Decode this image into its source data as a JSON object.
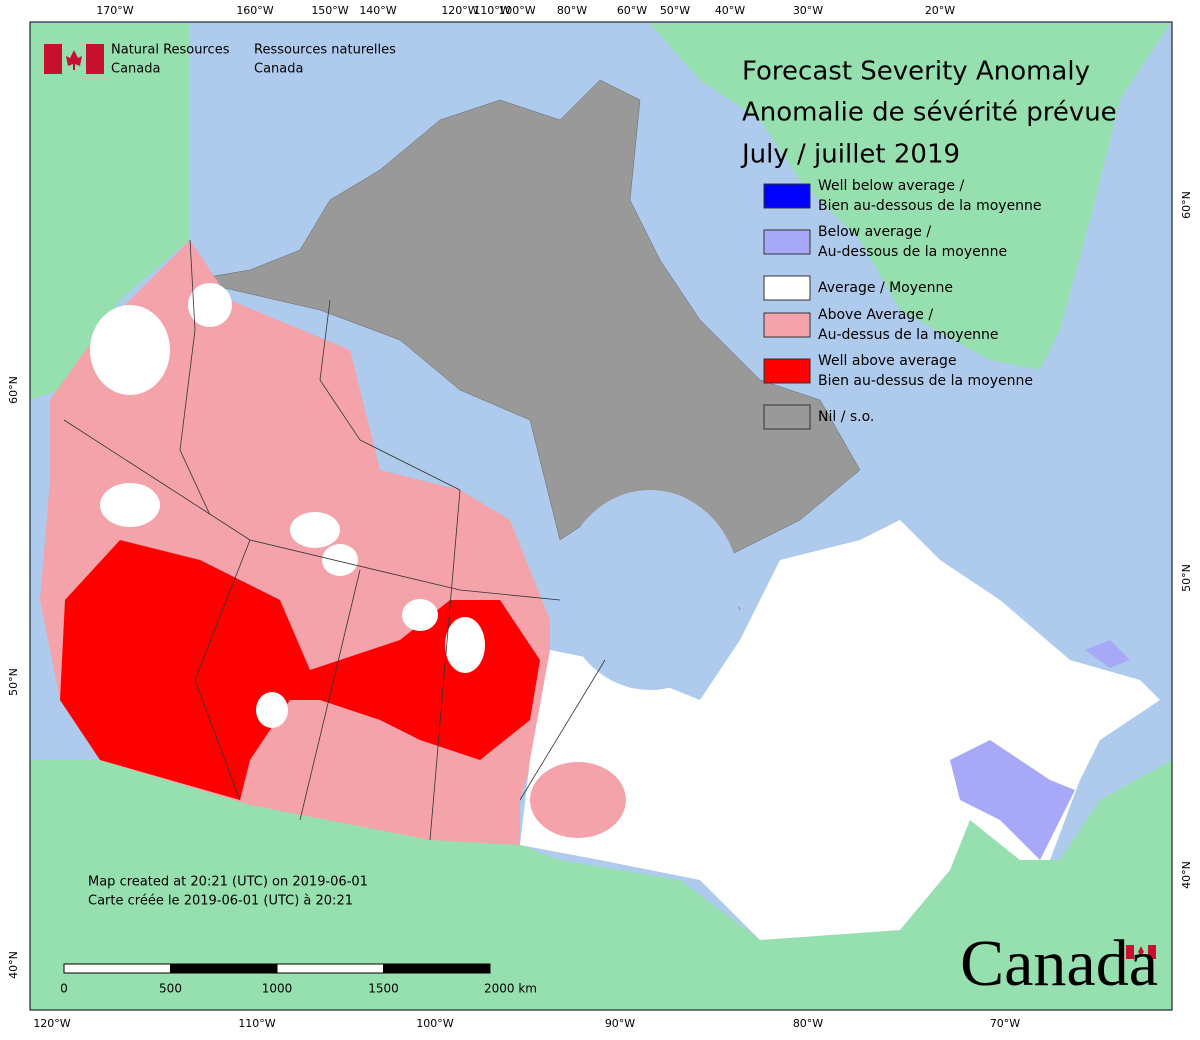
{
  "header": {
    "org_en": [
      "Natural Resources",
      "Canada"
    ],
    "org_fr": [
      "Ressources naturelles",
      "Canada"
    ]
  },
  "title": [
    "Forecast Severity Anomaly",
    "Anomalie de sévérité prévue",
    "July / juillet 2019"
  ],
  "legend": [
    {
      "color": "#0000ff",
      "label": [
        "Well below average /",
        "Bien au-dessous de la moyenne"
      ]
    },
    {
      "color": "#a8a8f8",
      "label": [
        "Below average /",
        "Au-dessous de la moyenne"
      ]
    },
    {
      "color": "#ffffff",
      "label": [
        "Average / Moyenne"
      ]
    },
    {
      "color": "#f4a3aa",
      "label": [
        "Above Average /",
        "Au-dessus de la moyenne"
      ]
    },
    {
      "color": "#ff0000",
      "label": [
        "Well above average",
        "Bien au-dessus de la moyenne"
      ]
    },
    {
      "color": "#999999",
      "label": [
        "Nil / s.o."
      ]
    }
  ],
  "notes": [
    "Map created at 20:21 (UTC) on 2019-06-01",
    "Carte créée le 2019-06-01 (UTC) à 20:21"
  ],
  "scale_bar": [
    "0",
    "500",
    "1000",
    "1500",
    "2000 km"
  ],
  "graticule": {
    "top": [
      "170°W",
      "160°W",
      "150°W",
      "140°W",
      "120°W",
      "110°W",
      "100°W",
      "80°W",
      "60°W",
      "50°W",
      "40°W",
      "30°W",
      "20°W"
    ],
    "bottom": [
      "120°W",
      "110°W",
      "100°W",
      "90°W",
      "80°W",
      "70°W"
    ],
    "left": [
      "60°N",
      "50°N",
      "40°N"
    ],
    "right": [
      "60°N",
      "50°N",
      "40°N"
    ]
  },
  "wordmark": "Canada"
}
